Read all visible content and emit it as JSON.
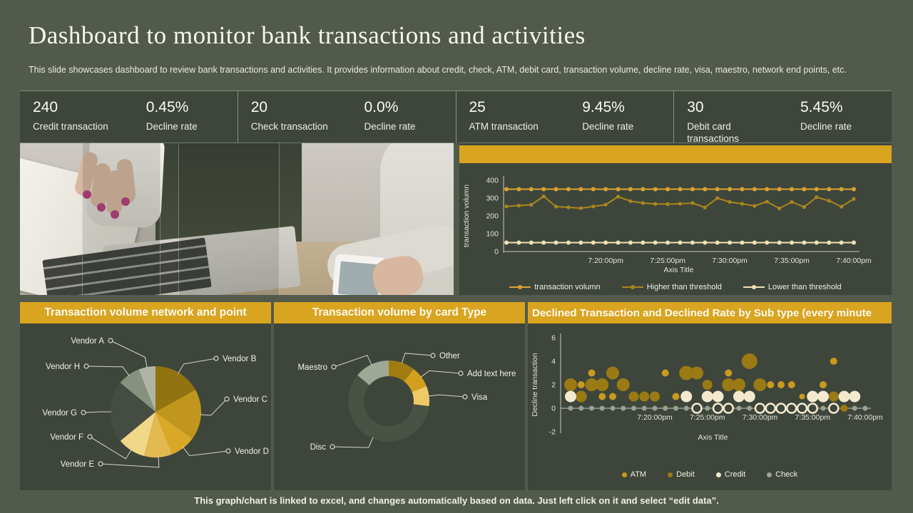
{
  "slide": {
    "title": "Dashboard to monitor bank transactions and activities",
    "subtitle": "This slide showcases dashboard to review bank transactions and activities. It provides information about credit, check, ATM,  debit card, transaction volume,  decline rate, visa, maestro, network end points, etc.",
    "footer": "This graph/chart is linked to excel, and changes automatically based on data. Just left click on it and select “edit data”."
  },
  "colors": {
    "background": "#525a4c",
    "panel": "#3e453b",
    "accent_gold": "#d9a41f",
    "text_light": "#f4f2e8",
    "axis": "#c6c9b9"
  },
  "kpis": [
    {
      "value": "240",
      "label": "Credit transaction",
      "rate": "0.45%",
      "rate_label": "Decline rate"
    },
    {
      "value": "20",
      "label": "Check transaction",
      "rate": "0.0%",
      "rate_label": "Decline rate"
    },
    {
      "value": "25",
      "label": "ATM transaction",
      "rate": "9.45%",
      "rate_label": "Decline rate"
    },
    {
      "value": "30",
      "label": "Debit card transactions",
      "rate": "5.45%",
      "rate_label": "Decline rate"
    }
  ],
  "chart_data": [
    {
      "id": "volume-line",
      "type": "line",
      "title": "",
      "ylabel": "transaction volumn",
      "xlabel": "Axis Title",
      "ylim": [
        0,
        400
      ],
      "yticks": [
        0,
        100,
        200,
        300,
        400
      ],
      "xcount": 29,
      "xticklabels": [
        "7:20:00pm",
        "7:25:00pm",
        "7:30:00pm",
        "7:35:00pm",
        "7:40:00pm"
      ],
      "xtick_indices": [
        8,
        13,
        18,
        23,
        28
      ],
      "legend_position": "bottom",
      "grid": false,
      "series": [
        {
          "name": "transaction volumn",
          "color": "#d8a431",
          "marker_r": 3,
          "values": [
            350,
            350,
            350,
            350,
            350,
            350,
            350,
            350,
            350,
            350,
            350,
            350,
            350,
            350,
            350,
            350,
            350,
            350,
            350,
            350,
            350,
            350,
            350,
            350,
            350,
            350,
            350,
            350,
            350
          ]
        },
        {
          "name": "Higher than threshold",
          "color": "#a8871d",
          "marker_r": 2.6,
          "values": [
            253,
            258,
            262,
            310,
            252,
            248,
            243,
            253,
            263,
            308,
            283,
            272,
            267,
            266,
            268,
            272,
            247,
            300,
            278,
            268,
            256,
            280,
            242,
            278,
            250,
            305,
            285,
            252,
            295
          ]
        },
        {
          "name": "Lower than threshold",
          "color": "#efe3b2",
          "marker_r": 3,
          "values": [
            50,
            50,
            50,
            50,
            50,
            50,
            50,
            50,
            50,
            50,
            50,
            50,
            50,
            50,
            50,
            50,
            50,
            50,
            50,
            50,
            50,
            50,
            50,
            50,
            50,
            50,
            50,
            50,
            50
          ]
        }
      ]
    },
    {
      "id": "vendor-pie",
      "type": "pie",
      "title": "Transaction volume network and point",
      "slices": [
        {
          "label": "Vendor B",
          "value": 17,
          "color": "#917410",
          "side": "right",
          "dot": [
            275,
            49
          ]
        },
        {
          "label": "Vendor C",
          "value": 18,
          "color": "#c0961d",
          "side": "right",
          "dot": [
            290,
            106
          ]
        },
        {
          "label": "Vendor D",
          "value": 9,
          "color": "#d8a826",
          "side": "right",
          "dot": [
            292,
            179
          ]
        },
        {
          "label": "Vendor E",
          "value": 10,
          "color": "#e2b94e",
          "side": "left",
          "dot": [
            113,
            197
          ]
        },
        {
          "label": "Vendor F",
          "value": 10,
          "color": "#f1d788",
          "side": "left",
          "dot": [
            98,
            159
          ]
        },
        {
          "label": "Vendor G",
          "value": 22,
          "color": "#454d42",
          "side": "left",
          "dot": [
            89,
            125
          ]
        },
        {
          "label": "Vendor H",
          "value": 8,
          "color": "#87917f",
          "side": "left",
          "dot": [
            93,
            60
          ]
        },
        {
          "label": "Vendor A",
          "value": 6,
          "color": "#aeb5a6",
          "side": "left",
          "dot": [
            127,
            24
          ]
        }
      ]
    },
    {
      "id": "card-donut",
      "type": "donut",
      "title": "Transaction volume by card Type",
      "slices": [
        {
          "label": "Other",
          "value": 10.5,
          "color": "#a07c10",
          "side": "right",
          "dot": [
            223,
            45
          ]
        },
        {
          "label": "Add text here",
          "value": 8.5,
          "color": "#d2a01e",
          "side": "right",
          "dot": [
            262,
            70
          ]
        },
        {
          "label": "Visa",
          "value": 8,
          "color": "#eeca67",
          "side": "right",
          "dot": [
            268,
            103
          ]
        },
        {
          "label": "Disc",
          "value": 59,
          "color": "#4a5145",
          "side": "left",
          "dot": [
            82,
            173
          ]
        },
        {
          "label": "Maestro",
          "value": 14,
          "color": "#9fa896",
          "side": "left",
          "dot": [
            84,
            61
          ]
        }
      ]
    },
    {
      "id": "declined-bubble",
      "type": "bubble",
      "title": "Declined Transaction and Declined Rate by Sub type (every minute",
      "ylabel": "Decline transaction",
      "xlabel": "Axis Title",
      "ylim": [
        -2,
        6
      ],
      "yticks": [
        -2,
        0,
        2,
        4,
        6
      ],
      "xcount": 29,
      "xticklabels": [
        "7:20:00pm",
        "7:25:00pm",
        "7:30:00pm",
        "7:35:00pm",
        "7:40:00pm"
      ],
      "xtick_indices": [
        8,
        13,
        18,
        23,
        28
      ],
      "legend_position": "bottom",
      "series": [
        {
          "name": "ATM",
          "color": "#c89a1e",
          "points": [
            [
              1,
              2,
              5
            ],
            [
              2,
              3,
              5
            ],
            [
              3,
              1,
              5
            ],
            [
              4,
              1,
              5
            ],
            [
              9,
              3,
              5
            ],
            [
              10,
              1,
              5
            ],
            [
              15,
              3,
              5
            ],
            [
              19,
              2,
              5
            ],
            [
              20,
              2,
              5
            ],
            [
              21,
              2,
              5
            ],
            [
              22,
              1,
              4
            ],
            [
              23,
              1,
              4
            ],
            [
              24,
              2,
              5
            ],
            [
              25,
              4,
              5
            ]
          ]
        },
        {
          "name": "Debit",
          "color": "#9a7a14",
          "points": [
            [
              0,
              2,
              9
            ],
            [
              1,
              1,
              8
            ],
            [
              2,
              2,
              9
            ],
            [
              3,
              2,
              9
            ],
            [
              4,
              3,
              9
            ],
            [
              5,
              2,
              9
            ],
            [
              6,
              1,
              7
            ],
            [
              7,
              1,
              7
            ],
            [
              8,
              1,
              7
            ],
            [
              11,
              3,
              10
            ],
            [
              12,
              3,
              9
            ],
            [
              13,
              2,
              7
            ],
            [
              15,
              2,
              9
            ],
            [
              16,
              2,
              9
            ],
            [
              17,
              4,
              11
            ],
            [
              18,
              2,
              9
            ],
            [
              25,
              1,
              7
            ],
            [
              26,
              0,
              5
            ]
          ]
        },
        {
          "name": "Credit",
          "color": "#f2e9cf",
          "points": [
            [
              0,
              1,
              8
            ],
            [
              11,
              1,
              8
            ],
            [
              13,
              1,
              8
            ],
            [
              14,
              1,
              8
            ],
            [
              16,
              1,
              8
            ],
            [
              17,
              1,
              8
            ],
            [
              23,
              1,
              8
            ],
            [
              24,
              1,
              8
            ],
            [
              26,
              1,
              8
            ],
            [
              27,
              1,
              8
            ]
          ],
          "rings": [
            [
              12,
              0,
              6.5
            ],
            [
              14,
              0,
              6.5
            ],
            [
              15,
              0,
              6.5
            ],
            [
              18,
              0,
              6.5
            ],
            [
              19,
              0,
              6.5
            ],
            [
              20,
              0,
              6.5
            ],
            [
              21,
              0,
              6.5
            ],
            [
              22,
              0,
              6.5
            ],
            [
              23,
              0,
              6.5
            ],
            [
              25,
              0,
              6.5
            ]
          ]
        },
        {
          "name": "Check",
          "color": "#99a294",
          "baseline": {
            "y": 0,
            "r": 3.5
          }
        }
      ]
    }
  ]
}
